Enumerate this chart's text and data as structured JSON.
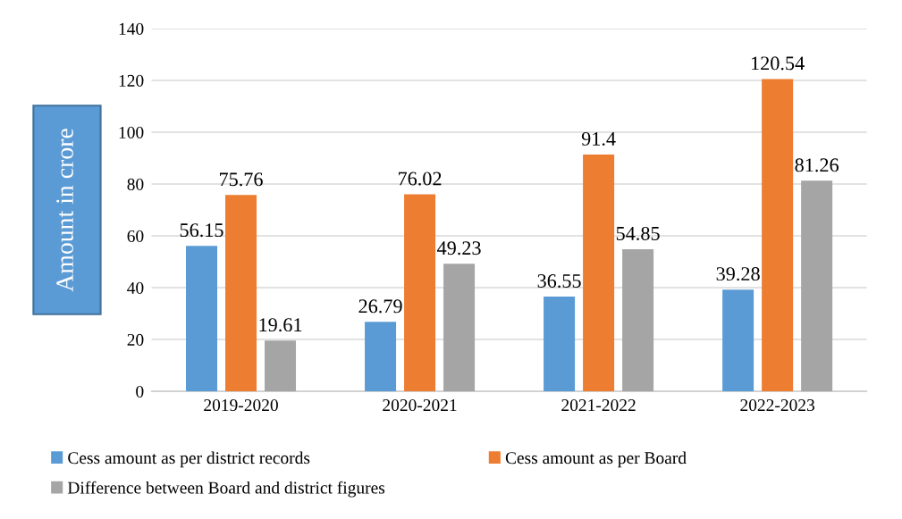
{
  "chart_data": {
    "type": "bar",
    "ylabel": "Amount in crore",
    "categories": [
      "2019-2020",
      "2020-2021",
      "2021-2022",
      "2022-2023"
    ],
    "series": [
      {
        "name": "Cess amount as per district records",
        "color": "#5b9bd5",
        "values": [
          56.15,
          26.79,
          36.55,
          39.28
        ]
      },
      {
        "name": "Cess amount as per Board",
        "color": "#ed7d31",
        "values": [
          75.76,
          76.02,
          91.4,
          120.54
        ]
      },
      {
        "name": "Difference between Board and district figures",
        "color": "#a5a5a5",
        "values": [
          19.61,
          49.23,
          54.85,
          81.26
        ]
      }
    ],
    "ylim": [
      0,
      140
    ],
    "yticks": [
      0,
      20,
      40,
      60,
      80,
      100,
      120,
      140
    ],
    "grid": "y",
    "legend": "bottom",
    "data_labels": true
  }
}
